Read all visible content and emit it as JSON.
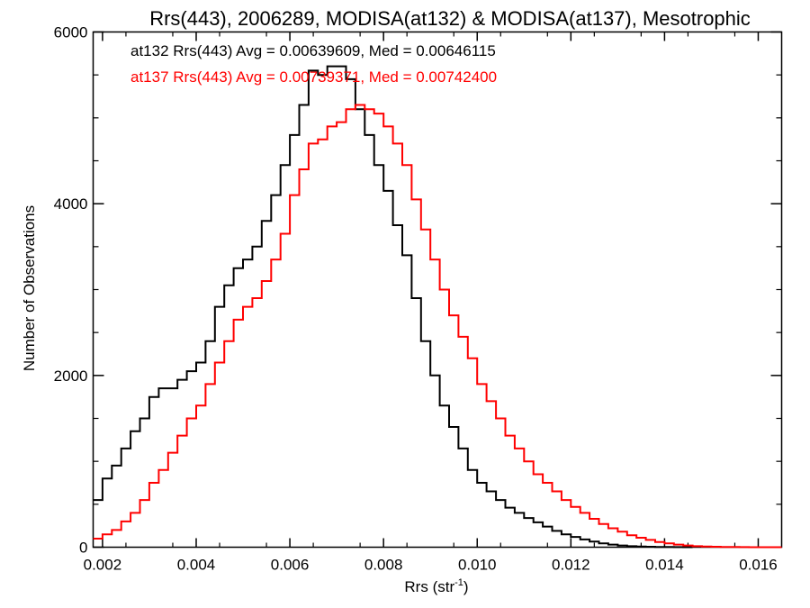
{
  "chart_data": {
    "type": "line",
    "title": "Rrs(443), 2006289, MODISA(at132) & MODISA(at137), Mesotrophic",
    "xlabel": "Rrs (str",
    "xlabel_sup": "-1",
    "xlabel_close": ")",
    "ylabel": "Number of Observations",
    "xlim": [
      0.0018,
      0.0165
    ],
    "ylim": [
      0,
      6000
    ],
    "x_ticks": [
      "0.002",
      "0.004",
      "0.006",
      "0.008",
      "0.010",
      "0.012",
      "0.014",
      "0.016"
    ],
    "x_tick_values": [
      0.002,
      0.004,
      0.006,
      0.008,
      0.01,
      0.012,
      0.014,
      0.016
    ],
    "y_ticks": [
      "0",
      "2000",
      "4000",
      "6000"
    ],
    "y_tick_values": [
      0,
      2000,
      4000,
      6000
    ],
    "grid": false,
    "annotations": [
      {
        "text": "at132 Rrs(443) Avg = 0.00639609, Med = 0.00646115",
        "color": "#000000"
      },
      {
        "text": "at137 Rrs(443) Avg = 0.00739371, Med = 0.00742400",
        "color": "#ff0000"
      }
    ],
    "series": [
      {
        "color": "#000000",
        "x": [
          0.0018,
          0.002,
          0.0022,
          0.0024,
          0.0026,
          0.0028,
          0.003,
          0.0032,
          0.0034,
          0.0036,
          0.0038,
          0.004,
          0.0042,
          0.0044,
          0.0046,
          0.0048,
          0.005,
          0.0052,
          0.0054,
          0.0056,
          0.0058,
          0.006,
          0.0062,
          0.0064,
          0.0066,
          0.0068,
          0.007,
          0.0072,
          0.0074,
          0.0076,
          0.0078,
          0.008,
          0.0082,
          0.0084,
          0.0086,
          0.0088,
          0.009,
          0.0092,
          0.0094,
          0.0096,
          0.0098,
          0.01,
          0.0102,
          0.0104,
          0.0106,
          0.0108,
          0.011,
          0.0112,
          0.0114,
          0.0116,
          0.0118,
          0.012,
          0.0122,
          0.0124,
          0.0126,
          0.0128,
          0.013,
          0.0132,
          0.0134,
          0.0136,
          0.0138,
          0.014,
          0.0142,
          0.0144
        ],
        "y": [
          550,
          800,
          950,
          1150,
          1350,
          1500,
          1750,
          1850,
          1850,
          1950,
          2050,
          2150,
          2400,
          2800,
          3050,
          3250,
          3350,
          3500,
          3800,
          4100,
          4450,
          4800,
          5150,
          5550,
          5500,
          5600,
          5600,
          5450,
          5100,
          4800,
          4450,
          4150,
          3750,
          3400,
          2900,
          2400,
          2000,
          1650,
          1400,
          1150,
          900,
          750,
          650,
          550,
          460,
          400,
          340,
          290,
          240,
          190,
          150,
          120,
          90,
          65,
          45,
          30,
          20,
          12,
          8,
          5,
          3,
          2,
          1,
          0
        ]
      },
      {
        "color": "#ff0000",
        "x": [
          0.0018,
          0.002,
          0.0022,
          0.0024,
          0.0026,
          0.0028,
          0.003,
          0.0032,
          0.0034,
          0.0036,
          0.0038,
          0.004,
          0.0042,
          0.0044,
          0.0046,
          0.0048,
          0.005,
          0.0052,
          0.0054,
          0.0056,
          0.0058,
          0.006,
          0.0062,
          0.0064,
          0.0066,
          0.0068,
          0.007,
          0.0072,
          0.0074,
          0.0076,
          0.0078,
          0.008,
          0.0082,
          0.0084,
          0.0086,
          0.0088,
          0.009,
          0.0092,
          0.0094,
          0.0096,
          0.0098,
          0.01,
          0.0102,
          0.0104,
          0.0106,
          0.0108,
          0.011,
          0.0112,
          0.0114,
          0.0116,
          0.0118,
          0.012,
          0.0122,
          0.0124,
          0.0126,
          0.0128,
          0.013,
          0.0132,
          0.0134,
          0.0136,
          0.0138,
          0.014,
          0.0142,
          0.0144,
          0.0146,
          0.0148,
          0.015,
          0.0152,
          0.0154,
          0.0156,
          0.0158,
          0.016,
          0.0162,
          0.0164
        ],
        "y": [
          100,
          150,
          200,
          300,
          400,
          550,
          750,
          900,
          1100,
          1300,
          1500,
          1650,
          1900,
          2150,
          2400,
          2650,
          2800,
          2900,
          3100,
          3350,
          3650,
          4100,
          4400,
          4700,
          4750,
          4900,
          4950,
          5100,
          5150,
          5100,
          5050,
          4900,
          4700,
          4450,
          4050,
          3700,
          3350,
          3000,
          2700,
          2450,
          2200,
          1900,
          1700,
          1500,
          1300,
          1150,
          1000,
          850,
          750,
          650,
          550,
          470,
          400,
          330,
          270,
          220,
          180,
          140,
          110,
          85,
          60,
          45,
          30,
          20,
          12,
          8,
          5,
          3,
          2,
          1,
          0,
          0,
          0,
          0
        ]
      }
    ]
  }
}
